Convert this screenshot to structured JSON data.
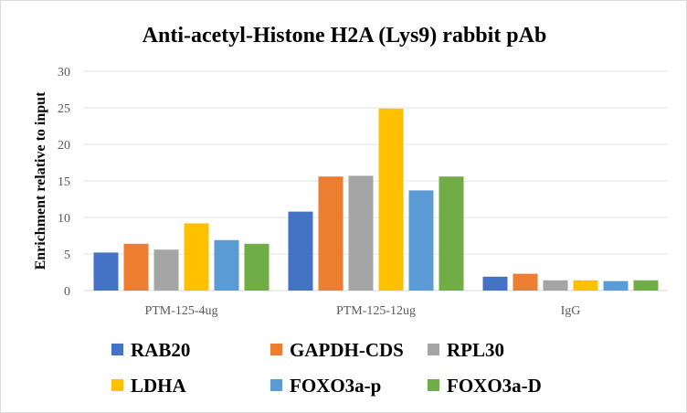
{
  "chart_data": {
    "type": "bar",
    "title": "Anti-acetyl-Histone H2A (Lys9) rabbit pAb",
    "xlabel": "",
    "ylabel": "Enrichment  relative to input",
    "ylim": [
      0,
      30
    ],
    "yticks": [
      0,
      5,
      10,
      15,
      20,
      25,
      30
    ],
    "grid": true,
    "legend_position": "bottom",
    "categories": [
      "PTM-125-4ug",
      "PTM-125-12ug",
      "IgG"
    ],
    "series": [
      {
        "name": "RAB20",
        "color": "#4472c4",
        "values": [
          5.2,
          10.8,
          1.9
        ]
      },
      {
        "name": "GAPDH-CDS",
        "color": "#ed7d31",
        "values": [
          6.4,
          15.6,
          2.3
        ]
      },
      {
        "name": "RPL30",
        "color": "#a5a5a5",
        "values": [
          5.6,
          15.7,
          1.4
        ]
      },
      {
        "name": "LDHA",
        "color": "#ffc000",
        "values": [
          9.2,
          24.9,
          1.4
        ]
      },
      {
        "name": "FOXO3a-p",
        "color": "#5b9bd5",
        "values": [
          6.9,
          13.7,
          1.3
        ]
      },
      {
        "name": "FOXO3a-D",
        "color": "#70ad47",
        "values": [
          6.4,
          15.6,
          1.4
        ]
      }
    ]
  }
}
